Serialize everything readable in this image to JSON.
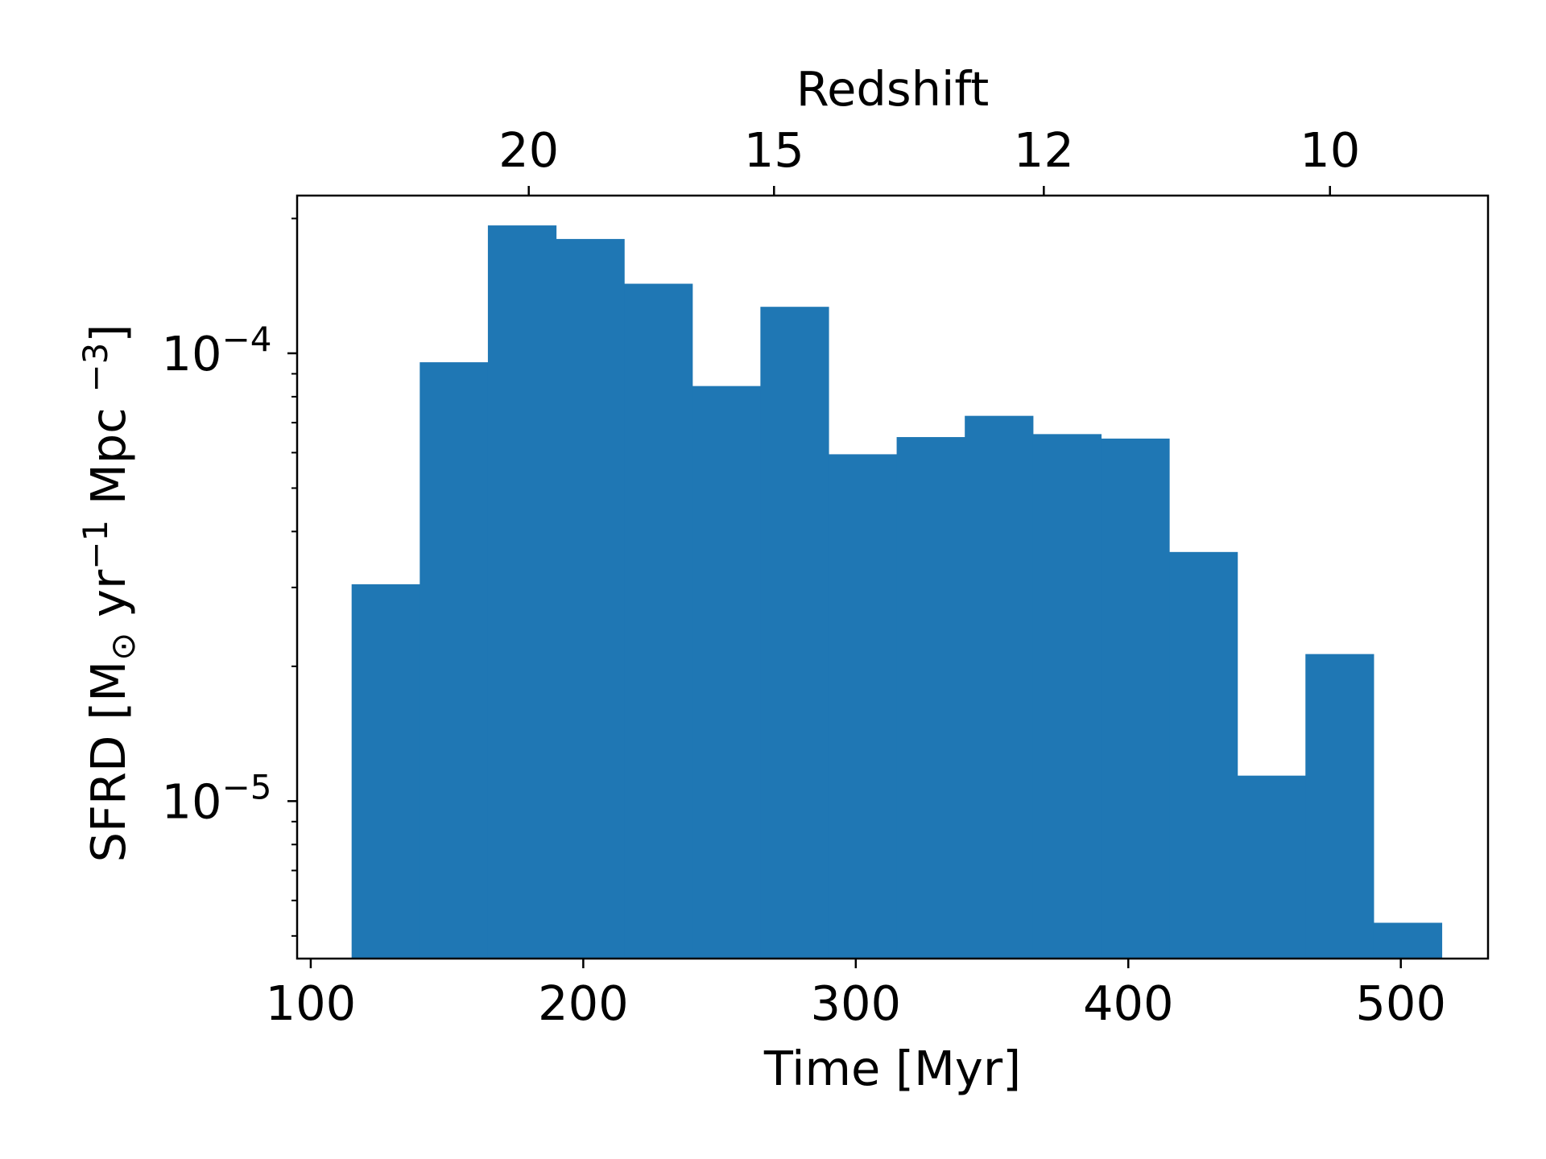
{
  "chart_data": {
    "type": "bar",
    "xlabel": "Time [Myr]",
    "top_xlabel": "Redshift",
    "ylabel": {
      "prefix": "SFRD  [M",
      "sun_symbol": "⊙",
      "mid1": " yr",
      "exp1": "−1",
      "mid2": " Mpc ",
      "exp2": "−3",
      "suffix": "]"
    },
    "xlim": [
      95,
      532
    ],
    "ylim": [
      4.45e-06,
      0.000225
    ],
    "yscale": "log",
    "grid": false,
    "bar_color": "#1f77b4",
    "bins": [
      {
        "x0": 115,
        "x1": 140,
        "value": 3.05e-05
      },
      {
        "x0": 140,
        "x1": 165,
        "value": 9.55e-05
      },
      {
        "x0": 165,
        "x1": 190,
        "value": 0.000193
      },
      {
        "x0": 190,
        "x1": 215,
        "value": 0.00018
      },
      {
        "x0": 215,
        "x1": 240,
        "value": 0.000143
      },
      {
        "x0": 240,
        "x1": 265,
        "value": 8.45e-05
      },
      {
        "x0": 265,
        "x1": 290,
        "value": 0.000127
      },
      {
        "x0": 290,
        "x1": 315,
        "value": 5.95e-05
      },
      {
        "x0": 315,
        "x1": 340,
        "value": 6.5e-05
      },
      {
        "x0": 340,
        "x1": 365,
        "value": 7.25e-05
      },
      {
        "x0": 365,
        "x1": 390,
        "value": 6.6e-05
      },
      {
        "x0": 390,
        "x1": 415,
        "value": 6.45e-05
      },
      {
        "x0": 415,
        "x1": 440,
        "value": 3.6e-05
      },
      {
        "x0": 440,
        "x1": 465,
        "value": 1.14e-05
      },
      {
        "x0": 465,
        "x1": 490,
        "value": 2.13e-05
      },
      {
        "x0": 490,
        "x1": 515,
        "value": 5.35e-06
      }
    ],
    "x_ticks": [
      {
        "value": 100,
        "label": "100"
      },
      {
        "value": 200,
        "label": "200"
      },
      {
        "value": 300,
        "label": "300"
      },
      {
        "value": 400,
        "label": "400"
      },
      {
        "value": 500,
        "label": "500"
      }
    ],
    "top_ticks": [
      {
        "time": 180,
        "label": "20"
      },
      {
        "time": 270,
        "label": "15"
      },
      {
        "time": 369,
        "label": "12"
      },
      {
        "time": 474,
        "label": "10"
      }
    ],
    "y_major_ticks": [
      {
        "value": 1e-05,
        "base": "10",
        "exp": "−5"
      },
      {
        "value": 0.0001,
        "base": "10",
        "exp": "−4"
      }
    ],
    "y_minor_ticks": [
      5e-06,
      6e-06,
      7e-06,
      8e-06,
      9e-06,
      2e-05,
      3e-05,
      4e-05,
      5e-05,
      6e-05,
      7e-05,
      8e-05,
      9e-05,
      0.0002
    ]
  }
}
